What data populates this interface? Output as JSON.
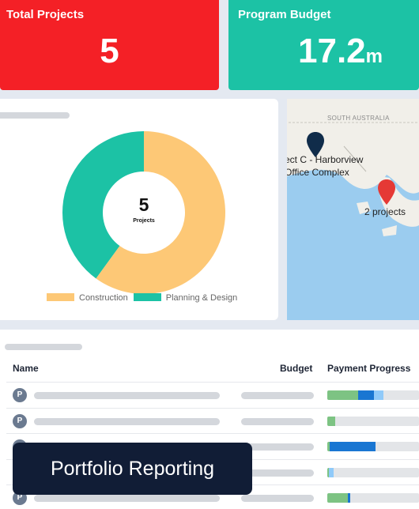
{
  "kpis": {
    "total_projects": {
      "label": "Total Projects",
      "value": "5"
    },
    "program_budget": {
      "label": "Program Budget",
      "value": "17.2",
      "unit": "m"
    }
  },
  "chart_data": {
    "type": "pie",
    "center_value": "5",
    "center_label": "Projects",
    "series": [
      {
        "name": "Construction",
        "value": 3,
        "color": "#fdc876"
      },
      {
        "name": "Planning & Design",
        "value": 2,
        "color": "#1cc2a5"
      }
    ]
  },
  "map": {
    "region_label": "SOUTH AUSTRALIA",
    "pin_label_line1": "ect C - Harborview",
    "pin_label_line2": "Office Complex",
    "cluster_label": "2 projects",
    "pin_dark_color": "#102c4a",
    "pin_red_color": "#e53935"
  },
  "table": {
    "headers": {
      "name": "Name",
      "budget": "Budget",
      "progress": "Payment Progress"
    },
    "rows": [
      {
        "icon": "P",
        "progress": [
          {
            "w": 0.34,
            "c": "#7dc383"
          },
          {
            "w": 0.17,
            "c": "#1976d2"
          },
          {
            "w": 0.1,
            "c": "#90caf9"
          }
        ]
      },
      {
        "icon": "P",
        "progress": [
          {
            "w": 0.09,
            "c": "#7dc383"
          }
        ]
      },
      {
        "icon": "P",
        "progress": [
          {
            "w": 0.03,
            "c": "#7dc383"
          },
          {
            "w": 0.5,
            "c": "#1976d2"
          }
        ]
      },
      {
        "icon": "P",
        "progress": [
          {
            "w": 0.02,
            "c": "#7dc383"
          },
          {
            "w": 0.05,
            "c": "#90caf9"
          }
        ]
      },
      {
        "icon": "P",
        "progress": [
          {
            "w": 0.22,
            "c": "#7dc383"
          },
          {
            "w": 0.03,
            "c": "#1976d2"
          }
        ]
      }
    ]
  },
  "banner": {
    "text": "Portfolio Reporting"
  }
}
